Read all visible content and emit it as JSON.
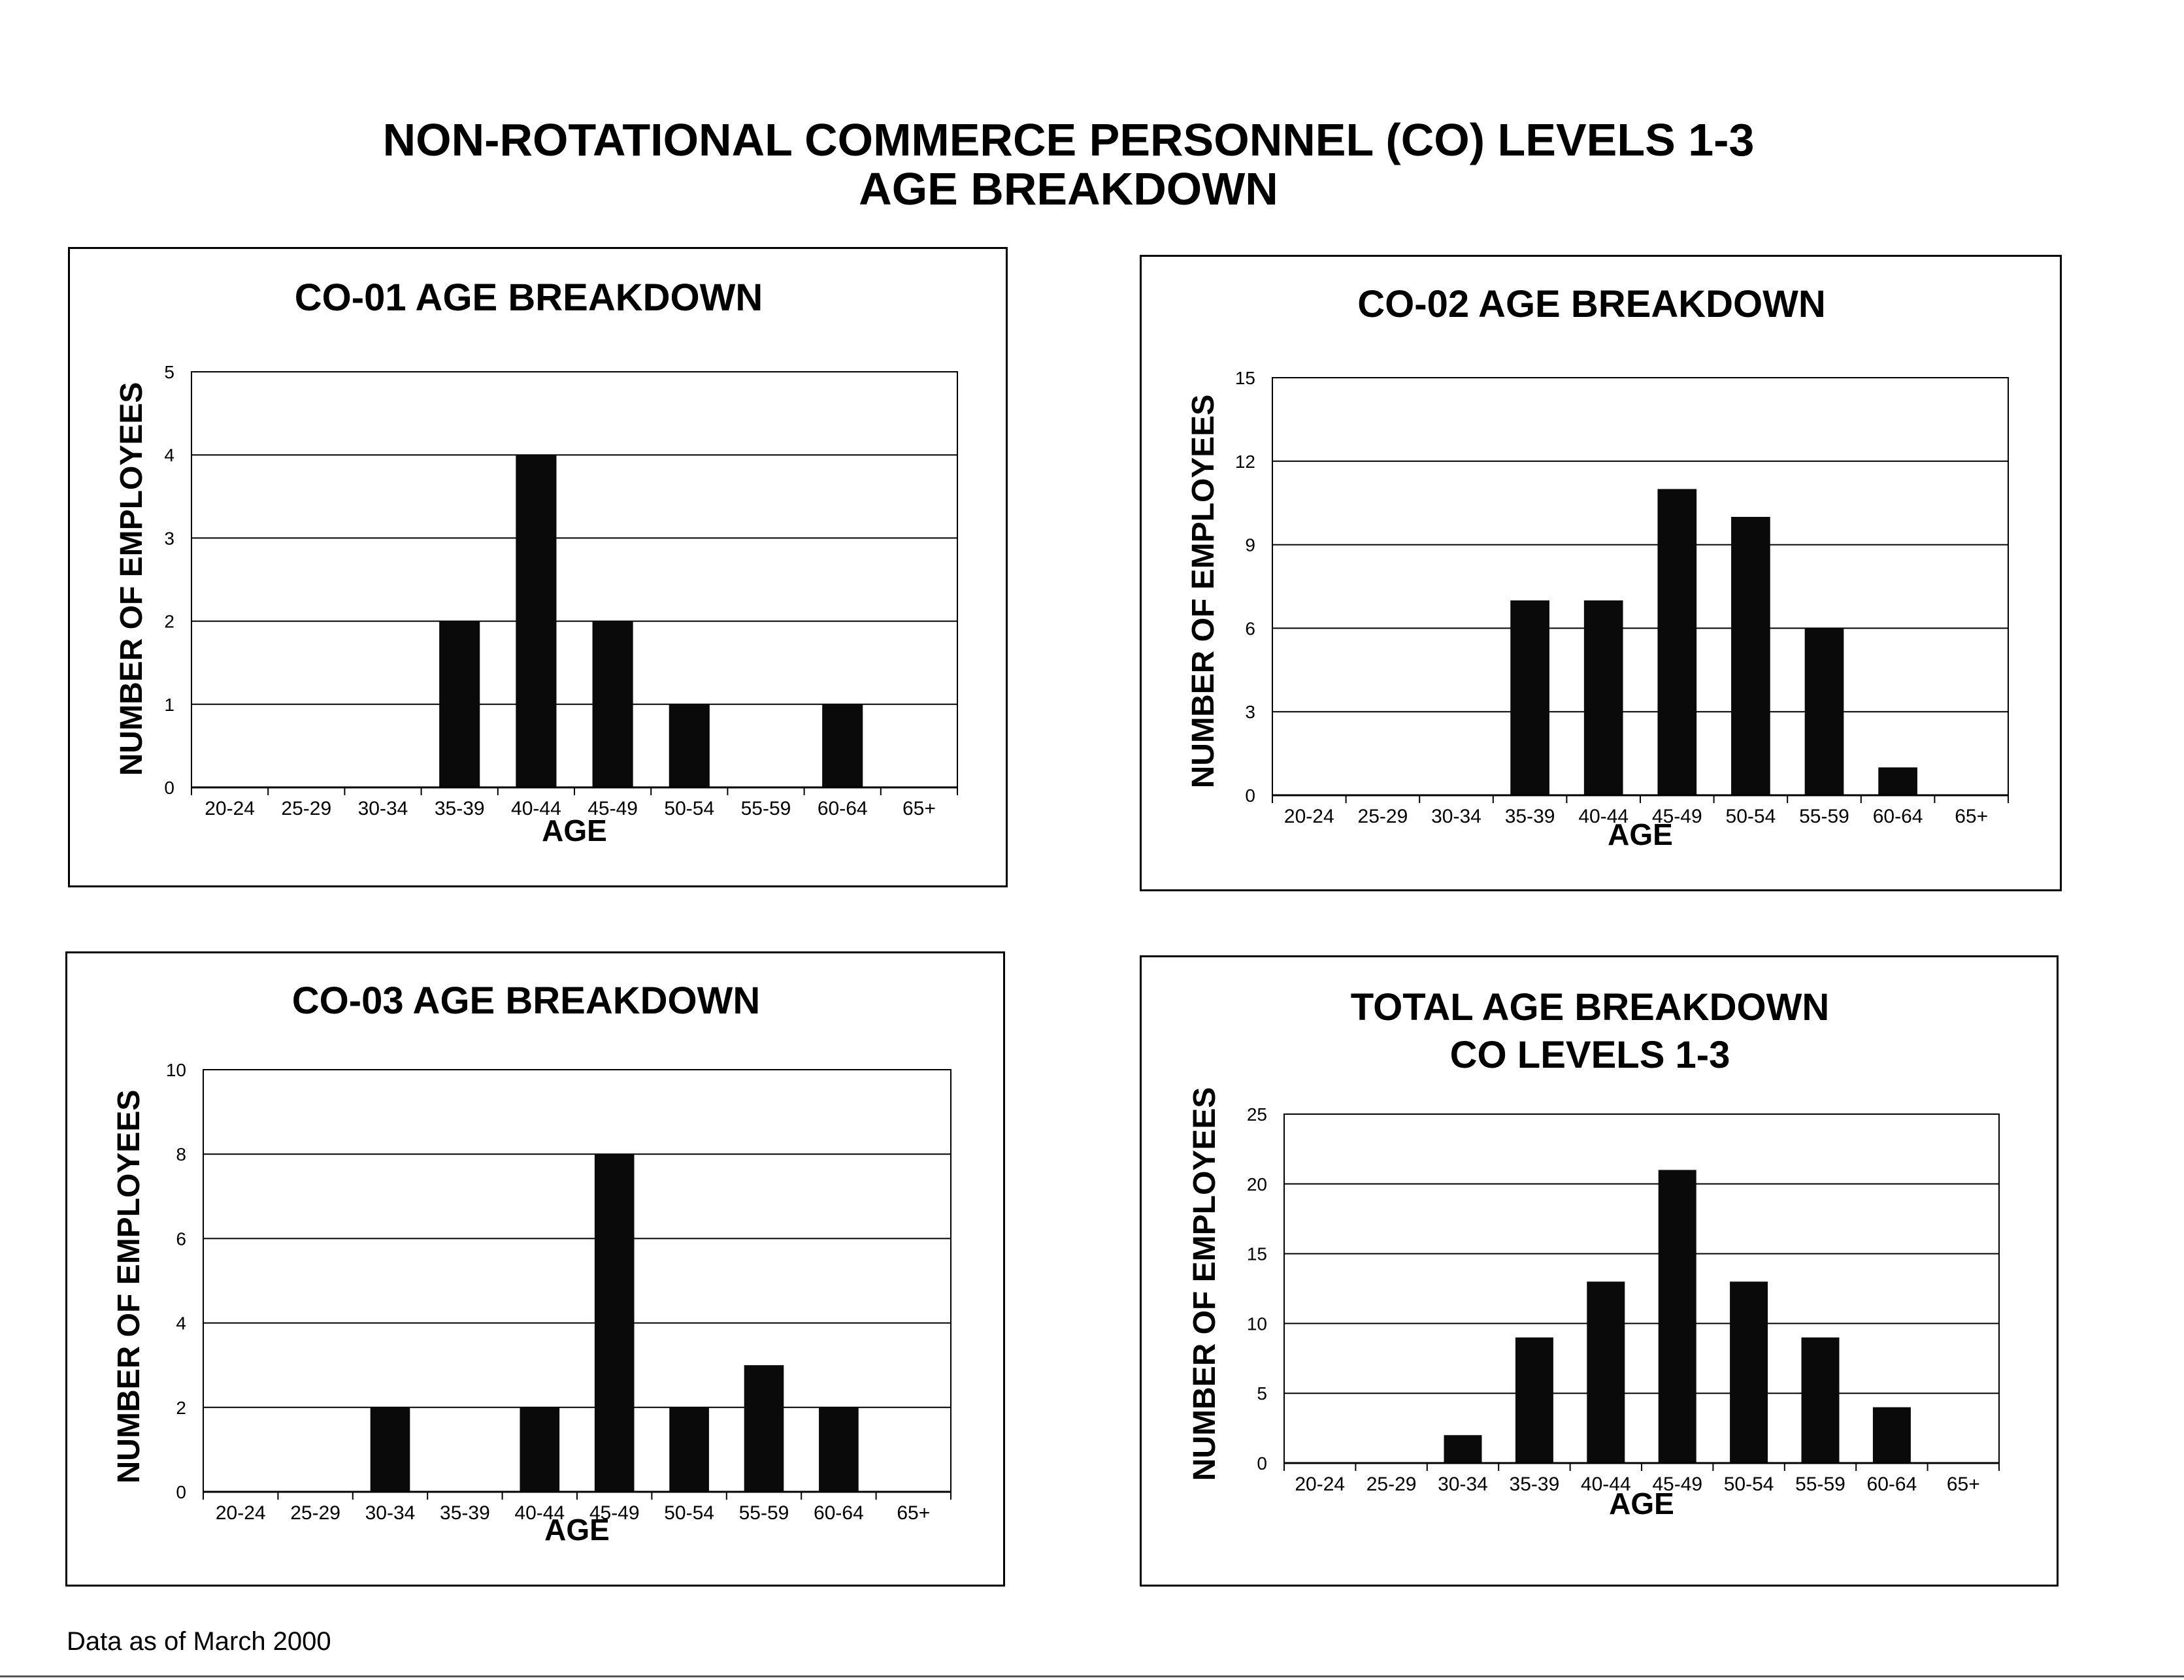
{
  "page": {
    "title_line1": "NON-ROTATIONAL COMMERCE PERSONNEL (CO) LEVELS 1-3",
    "title_line2": "AGE BREAKDOWN",
    "footnote": "Data as of March 2000"
  },
  "chart_data": [
    {
      "type": "bar",
      "title": "CO-01 AGE BREAKDOWN",
      "xlabel": "AGE",
      "ylabel": "NUMBER OF EMPLOYEES",
      "categories": [
        "20-24",
        "25-29",
        "30-34",
        "35-39",
        "40-44",
        "45-49",
        "50-54",
        "55-59",
        "60-64",
        "65+"
      ],
      "values": [
        0,
        0,
        0,
        2,
        4,
        2,
        1,
        0,
        1,
        0
      ],
      "ylim": [
        0,
        5
      ],
      "yticks": [
        0,
        1,
        2,
        3,
        4,
        5
      ],
      "grid": true
    },
    {
      "type": "bar",
      "title": "CO-02 AGE BREAKDOWN",
      "xlabel": "AGE",
      "ylabel": "NUMBER OF EMPLOYEES",
      "categories": [
        "20-24",
        "25-29",
        "30-34",
        "35-39",
        "40-44",
        "45-49",
        "50-54",
        "55-59",
        "60-64",
        "65+"
      ],
      "values": [
        0,
        0,
        0,
        7,
        7,
        11,
        10,
        6,
        1,
        0
      ],
      "ylim": [
        0,
        15
      ],
      "yticks": [
        0,
        3,
        6,
        9,
        12,
        15
      ],
      "grid": true
    },
    {
      "type": "bar",
      "title": "CO-03 AGE BREAKDOWN",
      "xlabel": "AGE",
      "ylabel": "NUMBER OF EMPLOYEES",
      "categories": [
        "20-24",
        "25-29",
        "30-34",
        "35-39",
        "40-44",
        "45-49",
        "50-54",
        "55-59",
        "60-64",
        "65+"
      ],
      "values": [
        0,
        0,
        2,
        0,
        2,
        8,
        2,
        3,
        2,
        0
      ],
      "ylim": [
        0,
        10
      ],
      "yticks": [
        0,
        2,
        4,
        6,
        8,
        10
      ],
      "grid": true
    },
    {
      "type": "bar",
      "title": "TOTAL AGE BREAKDOWN",
      "subtitle": "CO LEVELS 1-3",
      "xlabel": "AGE",
      "ylabel": "NUMBER OF EMPLOYEES",
      "categories": [
        "20-24",
        "25-29",
        "30-34",
        "35-39",
        "40-44",
        "45-49",
        "50-54",
        "55-59",
        "60-64",
        "65+"
      ],
      "values": [
        0,
        0,
        2,
        9,
        13,
        21,
        13,
        9,
        4,
        0
      ],
      "ylim": [
        0,
        25
      ],
      "yticks": [
        0,
        5,
        10,
        15,
        20,
        25
      ],
      "grid": true
    }
  ]
}
